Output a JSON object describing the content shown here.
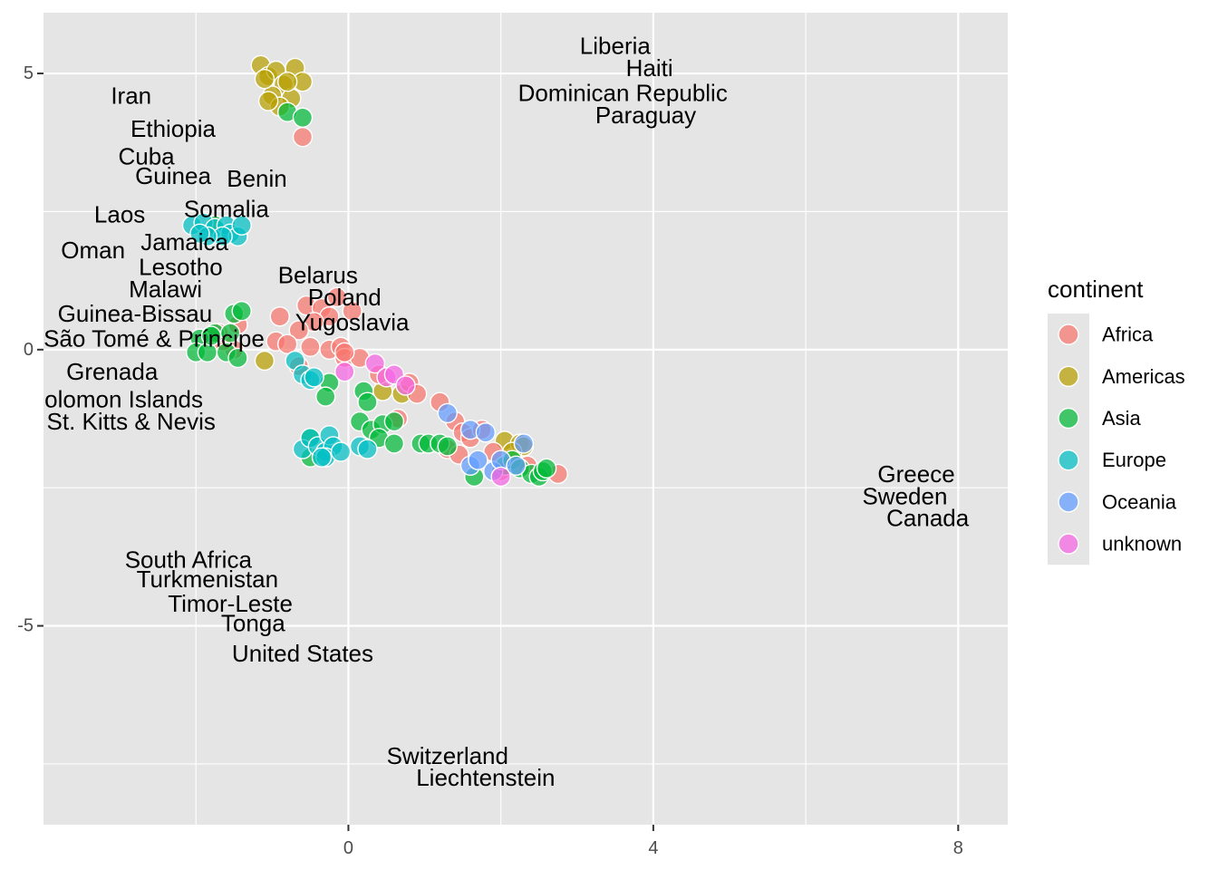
{
  "chart_data": {
    "type": "scatter",
    "title": "",
    "xlabel": "",
    "ylabel": "",
    "xlim": [
      -4.0,
      8.65
    ],
    "ylim": [
      -8.6,
      6.1
    ],
    "x_ticks": [
      0,
      4,
      8
    ],
    "y_ticks": [
      5,
      0,
      -5
    ],
    "x_tick_labels": [
      "0",
      "4",
      "8"
    ],
    "y_tick_labels": [
      "5",
      "0",
      "-5"
    ],
    "grid": true,
    "background": "#e5e5e5",
    "legend": {
      "title": "continent",
      "position": "right",
      "entries": [
        "Africa",
        "Americas",
        "Asia",
        "Europe",
        "Oceania",
        "unknown"
      ]
    },
    "colors": {
      "Africa": "#F8766D",
      "Americas": "#B79F00",
      "Asia": "#00BA38",
      "Europe": "#00BFC4",
      "Oceania": "#619CFF",
      "unknown": "#F564E3"
    },
    "series": [
      {
        "name": "Americas",
        "points": [
          [
            -1.15,
            5.15
          ],
          [
            -1.05,
            4.95
          ],
          [
            -0.95,
            5.05
          ],
          [
            -0.7,
            5.1
          ],
          [
            -0.6,
            4.85
          ],
          [
            -0.85,
            4.8
          ],
          [
            -1.0,
            4.6
          ],
          [
            -0.75,
            4.55
          ],
          [
            -0.9,
            4.4
          ],
          [
            -1.05,
            4.5
          ],
          [
            -0.8,
            4.85
          ],
          [
            -1.1,
            4.9
          ],
          [
            -1.1,
            -0.2
          ],
          [
            0.45,
            -0.75
          ],
          [
            0.7,
            -0.8
          ],
          [
            2.05,
            -1.65
          ],
          [
            2.25,
            -1.7
          ],
          [
            2.3,
            -1.75
          ],
          [
            2.15,
            -1.85
          ]
        ]
      },
      {
        "name": "Africa",
        "points": [
          [
            -0.6,
            3.85
          ],
          [
            -0.55,
            0.8
          ],
          [
            -0.35,
            0.75
          ],
          [
            -0.15,
            0.95
          ],
          [
            0.05,
            0.7
          ],
          [
            -0.25,
            0.6
          ],
          [
            -0.45,
            0.5
          ],
          [
            -0.65,
            0.35
          ],
          [
            -0.9,
            0.6
          ],
          [
            -0.95,
            0.15
          ],
          [
            -0.8,
            0.1
          ],
          [
            -0.5,
            0.05
          ],
          [
            -0.25,
            0.0
          ],
          [
            -0.1,
            0.05
          ],
          [
            -0.05,
            -0.15
          ],
          [
            -0.65,
            -0.3
          ],
          [
            0.15,
            -0.15
          ],
          [
            0.4,
            -0.45
          ],
          [
            0.8,
            -0.6
          ],
          [
            0.9,
            -0.8
          ],
          [
            1.2,
            -0.95
          ],
          [
            1.4,
            -1.3
          ],
          [
            1.5,
            -1.5
          ],
          [
            1.6,
            -1.6
          ],
          [
            1.3,
            -1.8
          ],
          [
            1.45,
            -1.9
          ],
          [
            1.75,
            -1.45
          ],
          [
            1.9,
            -1.85
          ],
          [
            2.0,
            -2.2
          ],
          [
            2.35,
            -2.1
          ],
          [
            2.75,
            -2.25
          ],
          [
            -1.5,
            0.0
          ],
          [
            -1.45,
            0.45
          ],
          [
            -1.65,
            0.15
          ],
          [
            -1.7,
            0.3
          ],
          [
            0.65,
            -1.25
          ],
          [
            -0.05,
            -0.05
          ]
        ]
      },
      {
        "name": "Asia",
        "points": [
          [
            -0.8,
            4.3
          ],
          [
            -0.6,
            4.2
          ],
          [
            -1.75,
            2.25
          ],
          [
            -1.5,
            0.65
          ],
          [
            -1.4,
            0.7
          ],
          [
            -1.75,
            0.3
          ],
          [
            -1.95,
            0.2
          ],
          [
            -2.0,
            -0.05
          ],
          [
            -1.85,
            -0.05
          ],
          [
            -1.6,
            -0.05
          ],
          [
            -1.45,
            -0.15
          ],
          [
            -1.55,
            0.3
          ],
          [
            -1.8,
            0.25
          ],
          [
            -0.5,
            -1.6
          ],
          [
            -0.5,
            -1.95
          ],
          [
            -0.25,
            -0.6
          ],
          [
            -0.3,
            -0.85
          ],
          [
            0.2,
            -0.75
          ],
          [
            0.25,
            -0.95
          ],
          [
            0.15,
            -1.3
          ],
          [
            0.3,
            -1.45
          ],
          [
            0.45,
            -1.35
          ],
          [
            0.6,
            -1.3
          ],
          [
            0.4,
            -1.6
          ],
          [
            0.6,
            -1.7
          ],
          [
            0.95,
            -1.7
          ],
          [
            1.05,
            -1.7
          ],
          [
            1.2,
            -1.7
          ],
          [
            1.3,
            -1.75
          ],
          [
            2.05,
            -2.1
          ],
          [
            2.15,
            -2.0
          ],
          [
            2.25,
            -2.15
          ],
          [
            2.4,
            -2.25
          ],
          [
            2.5,
            -2.3
          ],
          [
            2.55,
            -2.2
          ],
          [
            2.6,
            -2.15
          ],
          [
            1.65,
            -2.3
          ]
        ]
      },
      {
        "name": "Europe",
        "points": [
          [
            -2.05,
            2.25
          ],
          [
            -1.9,
            2.3
          ],
          [
            -1.75,
            2.2
          ],
          [
            -1.6,
            2.25
          ],
          [
            -1.55,
            2.1
          ],
          [
            -1.45,
            2.05
          ],
          [
            -1.4,
            2.25
          ],
          [
            -1.65,
            2.05
          ],
          [
            -1.85,
            2.05
          ],
          [
            -1.95,
            2.1
          ],
          [
            -0.7,
            -0.2
          ],
          [
            -0.6,
            -0.45
          ],
          [
            -0.5,
            -0.55
          ],
          [
            -0.45,
            -0.5
          ],
          [
            -0.6,
            -1.8
          ],
          [
            -0.5,
            -1.6
          ],
          [
            -0.4,
            -1.75
          ],
          [
            -0.3,
            -1.85
          ],
          [
            -0.25,
            -1.55
          ],
          [
            -0.2,
            -1.75
          ],
          [
            -0.3,
            -1.95
          ],
          [
            -0.1,
            -1.85
          ],
          [
            0.15,
            -1.75
          ],
          [
            0.25,
            -1.8
          ],
          [
            -0.35,
            -1.95
          ]
        ]
      },
      {
        "name": "Oceania",
        "points": [
          [
            1.3,
            -1.15
          ],
          [
            1.6,
            -1.45
          ],
          [
            1.8,
            -1.5
          ],
          [
            1.6,
            -2.1
          ],
          [
            1.7,
            -2.0
          ],
          [
            1.9,
            -2.2
          ],
          [
            2.0,
            -2.0
          ],
          [
            2.2,
            -2.1
          ],
          [
            2.3,
            -1.7
          ]
        ]
      },
      {
        "name": "unknown",
        "points": [
          [
            0.35,
            -0.25
          ],
          [
            0.5,
            -0.5
          ],
          [
            0.6,
            -0.45
          ],
          [
            0.75,
            -0.65
          ],
          [
            -0.05,
            -0.4
          ],
          [
            2.0,
            -2.3
          ]
        ]
      }
    ],
    "annotations": [
      {
        "text": "Liberia",
        "x": 3.5,
        "y": 5.5
      },
      {
        "text": "Haiti",
        "x": 3.95,
        "y": 5.1
      },
      {
        "text": "Dominican Republic",
        "x": 3.6,
        "y": 4.65
      },
      {
        "text": "Paraguay",
        "x": 3.9,
        "y": 4.25
      },
      {
        "text": "Iran",
        "x": -2.85,
        "y": 4.6
      },
      {
        "text": "Ethiopia",
        "x": -2.3,
        "y": 4.0
      },
      {
        "text": "Cuba",
        "x": -2.65,
        "y": 3.5
      },
      {
        "text": "Guinea",
        "x": -2.3,
        "y": 3.15
      },
      {
        "text": "Benin",
        "x": -1.2,
        "y": 3.1
      },
      {
        "text": "Somalia",
        "x": -1.6,
        "y": 2.55
      },
      {
        "text": "Laos",
        "x": -3.0,
        "y": 2.45
      },
      {
        "text": "Jamaica",
        "x": -2.15,
        "y": 1.95
      },
      {
        "text": "Oman",
        "x": -3.35,
        "y": 1.8
      },
      {
        "text": "Lesotho",
        "x": -2.2,
        "y": 1.5
      },
      {
        "text": "Belarus",
        "x": -0.4,
        "y": 1.35
      },
      {
        "text": "Malawi",
        "x": -2.4,
        "y": 1.1
      },
      {
        "text": "Poland",
        "x": -0.05,
        "y": 0.95
      },
      {
        "text": "Guinea-Bissau",
        "x": -2.8,
        "y": 0.65
      },
      {
        "text": "Yugoslavia",
        "x": 0.05,
        "y": 0.5
      },
      {
        "text": "São Tomé & Príncipe",
        "x": -2.55,
        "y": 0.2
      },
      {
        "text": "Grenada",
        "x": -3.1,
        "y": -0.4
      },
      {
        "text": "Solomon Islands",
        "x": -3.05,
        "y": -0.9
      },
      {
        "text": "St. Kitts & Nevis",
        "x": -2.85,
        "y": -1.3
      },
      {
        "text": "Greece",
        "x": 7.45,
        "y": -2.25
      },
      {
        "text": "Sweden",
        "x": 7.3,
        "y": -2.65
      },
      {
        "text": "Canada",
        "x": 7.6,
        "y": -3.05
      },
      {
        "text": "South Africa",
        "x": -2.1,
        "y": -3.8
      },
      {
        "text": "Turkmenistan",
        "x": -1.85,
        "y": -4.15
      },
      {
        "text": "Timor-Leste",
        "x": -1.55,
        "y": -4.6
      },
      {
        "text": "Tonga",
        "x": -1.25,
        "y": -4.95
      },
      {
        "text": "United States",
        "x": -0.6,
        "y": -5.5
      },
      {
        "text": "Switzerland",
        "x": 1.3,
        "y": -7.35
      },
      {
        "text": "Liechtenstein",
        "x": 1.8,
        "y": -7.75
      }
    ]
  }
}
